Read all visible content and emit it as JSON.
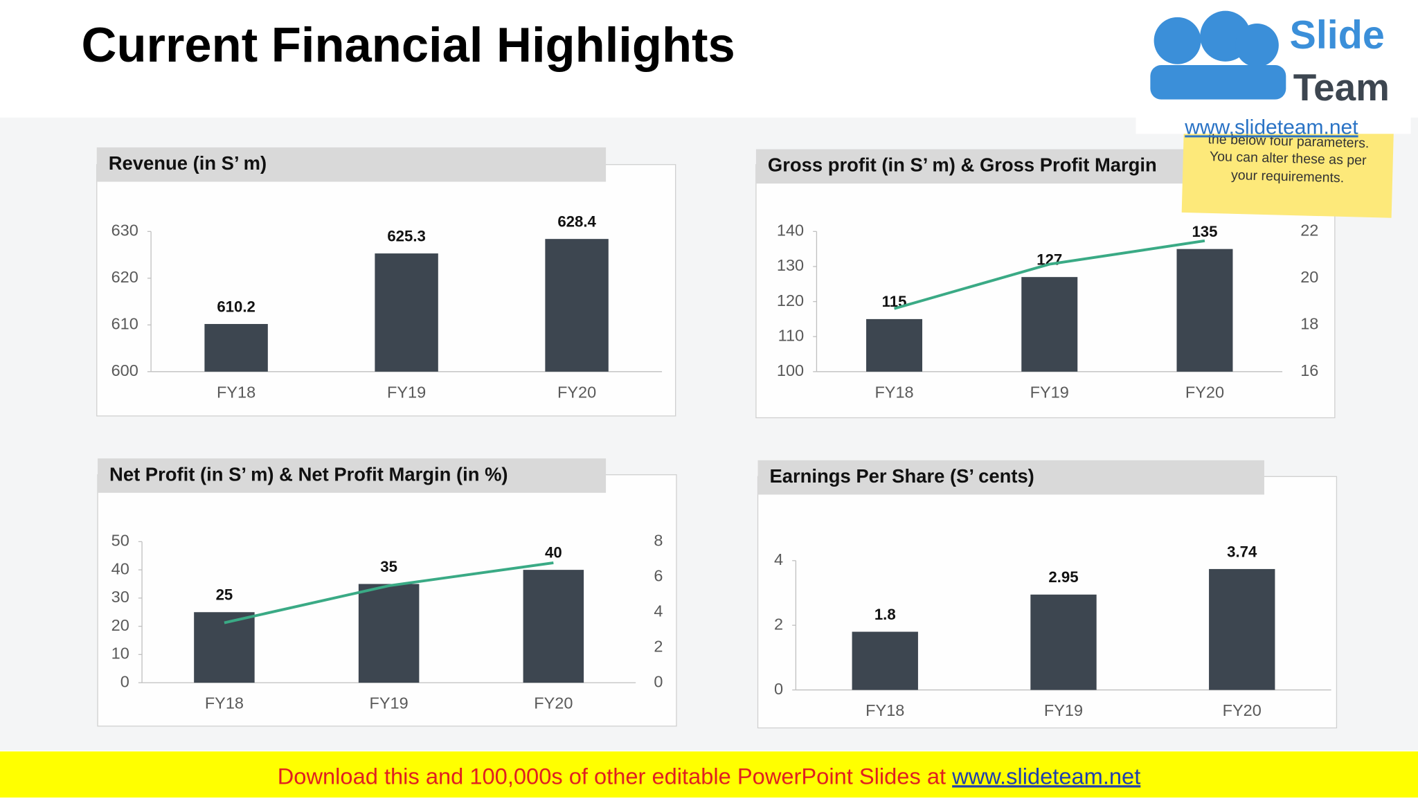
{
  "header": {
    "title": "Current Financial Highlights"
  },
  "logo": {
    "word1": "Slide",
    "word2": "Team",
    "url": "www.slideteam.net"
  },
  "note": {
    "lines": [
      "the below four parameters.",
      "You can alter these as per",
      "your requirements."
    ]
  },
  "footer": {
    "text": "Download this and 100,000s of other editable PowerPoint Slides at ",
    "link": "www.slideteam.net"
  },
  "chart_data": [
    {
      "type": "bar",
      "title": "Revenue (in S’ m)",
      "categories": [
        "FY18",
        "FY19",
        "FY20"
      ],
      "series": [
        {
          "color": "#3d4650",
          "values": [
            610.2,
            625.3,
            628.4
          ]
        }
      ],
      "ylim": [
        600,
        630
      ],
      "yticks": [
        600,
        610,
        620,
        630
      ],
      "grid": false
    },
    {
      "type": "bar",
      "title": "Gross profit (in S’ m) & Gross Profit Margin",
      "categories": [
        "FY18",
        "FY19",
        "FY20"
      ],
      "series": [
        {
          "color": "#3d4650",
          "values": [
            115,
            127,
            135
          ]
        },
        {
          "type": "line",
          "axis": "y2",
          "color": "#3aaa85",
          "values": [
            18.7,
            20.6,
            21.6
          ]
        }
      ],
      "ylim": [
        100,
        140
      ],
      "yticks": [
        100,
        110,
        120,
        130,
        140
      ],
      "y2lim": [
        16,
        22
      ],
      "y2ticks": [
        16,
        18,
        20,
        22
      ],
      "grid": false
    },
    {
      "type": "bar",
      "title": "Net Profit (in S’ m) & Net Profit Margin (in %)",
      "categories": [
        "FY18",
        "FY19",
        "FY20"
      ],
      "series": [
        {
          "color": "#3d4650",
          "values": [
            25,
            35,
            40
          ]
        },
        {
          "type": "line",
          "axis": "y2",
          "color": "#3aaa85",
          "values": [
            3.4,
            5.5,
            6.8
          ]
        }
      ],
      "ylim": [
        0,
        50
      ],
      "yticks": [
        0,
        10,
        20,
        30,
        40,
        50
      ],
      "y2lim": [
        0,
        8
      ],
      "y2ticks": [
        0,
        2,
        4,
        6,
        8
      ],
      "grid": false
    },
    {
      "type": "bar",
      "title": "Earnings Per Share (S’ cents)",
      "categories": [
        "FY18",
        "FY19",
        "FY20"
      ],
      "series": [
        {
          "color": "#3d4650",
          "values": [
            1.8,
            2.95,
            3.74
          ]
        }
      ],
      "ylim": [
        0,
        4
      ],
      "yticks": [
        0,
        2,
        4
      ],
      "grid": false
    }
  ]
}
